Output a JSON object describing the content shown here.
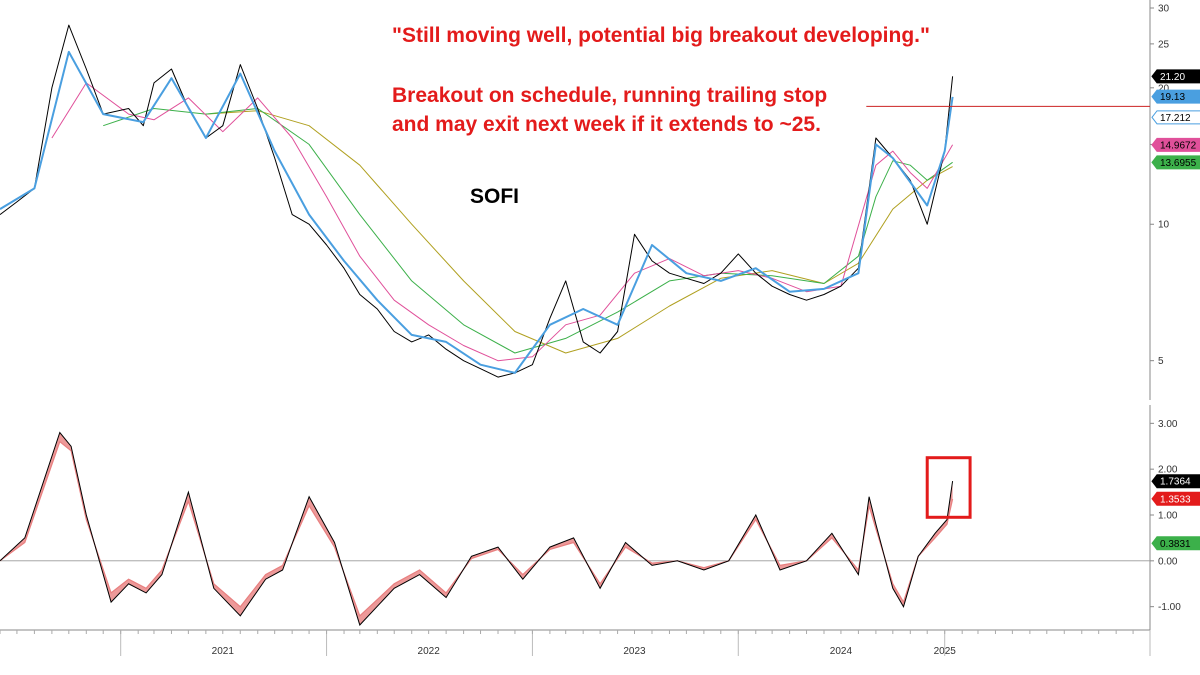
{
  "annotations": {
    "quote": "\"Still moving well, potential big breakout developing.\"",
    "note_line1": "Breakout on schedule, running trailing stop",
    "note_line2": "and may exit next week if it extends to ~25.",
    "ticker": "SOFI"
  },
  "colors": {
    "text_annotation": "#e31b1b",
    "price": "#000000",
    "ma_fast": "#4a9fe0",
    "ma_mid1": "#e0509a",
    "ma_mid2": "#3cb04a",
    "ma_slow": "#b0a020",
    "osc_fill": "#e88080",
    "resistance": "#cc2222"
  },
  "chart_data": [
    {
      "type": "line",
      "title": "",
      "ylabel": "",
      "y_scale": "log",
      "ylim": [
        4.2,
        30
      ],
      "y_ticks": [
        5,
        10,
        15,
        20,
        25,
        30
      ],
      "xlim": [
        "2020-06-01",
        "2025-12-31"
      ],
      "x_tick_labels": [
        "2021",
        "2022",
        "2023",
        "2024",
        "2025"
      ],
      "x_tick_dates": [
        "2021-07-01",
        "2022-07-01",
        "2023-07-01",
        "2024-07-01",
        "2025-01-01"
      ],
      "series": [
        {
          "role": "price",
          "color": "#000000",
          "x": [
            "2020-06-01",
            "2020-07-01",
            "2020-08-01",
            "2020-09-01",
            "2020-10-01",
            "2020-11-01",
            "2020-12-01",
            "2021-01-15",
            "2021-02-10",
            "2021-03-01",
            "2021-04-01",
            "2021-05-01",
            "2021-06-01",
            "2021-07-01",
            "2021-08-01",
            "2021-09-01",
            "2021-10-01",
            "2021-11-01",
            "2021-12-01",
            "2022-01-01",
            "2022-02-01",
            "2022-03-01",
            "2022-04-01",
            "2022-05-01",
            "2022-06-01",
            "2022-07-01",
            "2022-08-01",
            "2022-09-01",
            "2022-10-01",
            "2022-11-01",
            "2022-12-01",
            "2023-01-01",
            "2023-02-01",
            "2023-03-01",
            "2023-04-01",
            "2023-05-01",
            "2023-06-01",
            "2023-07-01",
            "2023-08-01",
            "2023-09-01",
            "2023-10-01",
            "2023-11-01",
            "2023-12-01",
            "2024-01-01",
            "2024-02-01",
            "2024-03-01",
            "2024-04-01",
            "2024-05-01",
            "2024-06-01",
            "2024-07-01",
            "2024-08-01",
            "2024-09-01",
            "2024-10-01",
            "2024-11-01",
            "2024-12-01",
            "2025-01-01",
            "2025-01-15"
          ],
          "y": [
            10.5,
            11.2,
            12.0,
            20.0,
            27.5,
            22.0,
            17.5,
            18.0,
            16.5,
            20.5,
            22.0,
            18.0,
            15.5,
            16.5,
            22.5,
            18.0,
            14.0,
            10.5,
            10.0,
            9.0,
            8.0,
            7.0,
            6.5,
            5.8,
            5.5,
            5.7,
            5.3,
            5.0,
            4.8,
            4.6,
            4.7,
            4.9,
            6.2,
            7.5,
            5.5,
            5.2,
            5.8,
            9.5,
            8.3,
            7.8,
            7.6,
            7.4,
            7.8,
            8.6,
            7.8,
            7.3,
            7.0,
            6.8,
            7.0,
            7.3,
            8.0,
            15.5,
            14.0,
            12.5,
            10.0,
            14.5,
            21.2
          ]
        },
        {
          "role": "ma_fast",
          "color": "#4a9fe0",
          "x": [
            "2020-06-01",
            "2020-08-01",
            "2020-10-01",
            "2020-12-01",
            "2021-02-10",
            "2021-04-01",
            "2021-06-01",
            "2021-08-01",
            "2021-10-01",
            "2021-12-01",
            "2022-02-01",
            "2022-04-01",
            "2022-06-01",
            "2022-08-01",
            "2022-10-01",
            "2022-12-01",
            "2023-02-01",
            "2023-04-01",
            "2023-06-01",
            "2023-08-01",
            "2023-10-01",
            "2023-12-01",
            "2024-02-01",
            "2024-04-01",
            "2024-06-01",
            "2024-08-01",
            "2024-09-01",
            "2024-10-01",
            "2024-12-01",
            "2025-01-01",
            "2025-01-15"
          ],
          "y": [
            10.8,
            12.0,
            24.0,
            17.5,
            16.8,
            21.0,
            15.5,
            21.5,
            14.5,
            10.5,
            8.3,
            6.8,
            5.7,
            5.5,
            4.9,
            4.7,
            6.0,
            6.5,
            6.0,
            9.0,
            7.8,
            7.5,
            8.0,
            7.1,
            7.2,
            7.8,
            15.0,
            14.0,
            11.0,
            14.5,
            19.1
          ]
        },
        {
          "role": "ma_mid1",
          "color": "#e0509a",
          "x": [
            "2020-09-01",
            "2020-11-01",
            "2021-01-15",
            "2021-03-01",
            "2021-05-01",
            "2021-07-01",
            "2021-09-01",
            "2021-11-01",
            "2022-01-01",
            "2022-03-01",
            "2022-05-01",
            "2022-07-01",
            "2022-09-01",
            "2022-11-01",
            "2023-01-01",
            "2023-03-01",
            "2023-05-01",
            "2023-07-01",
            "2023-09-01",
            "2023-11-01",
            "2024-01-01",
            "2024-03-01",
            "2024-05-01",
            "2024-07-01",
            "2024-09-01",
            "2024-10-01",
            "2024-11-01",
            "2024-12-01",
            "2025-01-15"
          ],
          "y": [
            15.5,
            20.5,
            17.5,
            17.0,
            19.0,
            16.0,
            19.0,
            15.5,
            11.5,
            8.5,
            6.8,
            6.0,
            5.4,
            5.0,
            5.1,
            6.0,
            6.3,
            7.8,
            8.4,
            7.7,
            7.9,
            7.6,
            7.1,
            7.3,
            13.5,
            14.5,
            13.0,
            12.0,
            14.97
          ]
        },
        {
          "role": "ma_mid2",
          "color": "#3cb04a",
          "x": [
            "2020-12-01",
            "2021-03-01",
            "2021-06-01",
            "2021-09-01",
            "2021-12-01",
            "2022-03-01",
            "2022-06-01",
            "2022-09-01",
            "2022-12-01",
            "2023-03-01",
            "2023-06-01",
            "2023-09-01",
            "2023-12-01",
            "2024-03-01",
            "2024-06-01",
            "2024-08-01",
            "2024-09-01",
            "2024-10-01",
            "2024-11-01",
            "2024-12-01",
            "2025-01-15"
          ],
          "y": [
            16.5,
            18.0,
            17.5,
            18.0,
            15.0,
            10.5,
            7.5,
            6.0,
            5.2,
            5.6,
            6.4,
            7.5,
            7.8,
            7.7,
            7.4,
            8.5,
            11.5,
            13.8,
            13.5,
            12.5,
            13.7
          ]
        },
        {
          "role": "ma_slow",
          "color": "#b0a020",
          "x": [
            "2021-06-01",
            "2021-09-01",
            "2021-12-01",
            "2022-03-01",
            "2022-06-01",
            "2022-09-01",
            "2022-12-01",
            "2023-03-01",
            "2023-06-01",
            "2023-09-01",
            "2023-12-01",
            "2024-03-01",
            "2024-06-01",
            "2024-08-01",
            "2024-10-01",
            "2024-12-01",
            "2025-01-15"
          ],
          "y": [
            17.5,
            17.8,
            16.5,
            13.5,
            10.0,
            7.5,
            5.8,
            5.2,
            5.6,
            6.6,
            7.6,
            7.9,
            7.4,
            8.2,
            10.8,
            12.5,
            13.4
          ]
        }
      ],
      "resistance_level": 18.2,
      "resistance_from": "2024-08-15",
      "last_value_labels": [
        {
          "text": "21.20",
          "value": 21.2,
          "bg": "#000000",
          "fg": "#ffffff"
        },
        {
          "text": "19.13",
          "value": 19.13,
          "bg": "#4a9fe0",
          "fg": "#000000"
        },
        {
          "text": "17.212",
          "value": 17.212,
          "bg": "#ffffff",
          "fg": "#000000",
          "border": "#4a9fe0"
        },
        {
          "text": "14.9672",
          "value": 14.9672,
          "bg": "#e0509a",
          "fg": "#000000"
        },
        {
          "text": "13.6955",
          "value": 13.6955,
          "bg": "#3cb04a",
          "fg": "#000000"
        }
      ]
    },
    {
      "type": "area",
      "title": "",
      "ylim": [
        -1.4,
        3.4
      ],
      "y_ticks": [
        -1.0,
        0.0,
        1.0,
        2.0,
        3.0
      ],
      "y_tick_labels": [
        "-1.00",
        "0.00",
        "1.00",
        "2.00",
        "3.00"
      ],
      "zero_line": true,
      "series": [
        {
          "role": "oscillator_fast",
          "color": "#000000",
          "x": [
            "2020-06-01",
            "2020-07-15",
            "2020-09-15",
            "2020-10-05",
            "2020-11-01",
            "2020-12-15",
            "2021-01-15",
            "2021-02-15",
            "2021-03-15",
            "2021-05-01",
            "2021-06-15",
            "2021-08-01",
            "2021-09-15",
            "2021-10-15",
            "2021-12-01",
            "2022-01-15",
            "2022-03-01",
            "2022-05-01",
            "2022-06-15",
            "2022-08-01",
            "2022-09-15",
            "2022-11-01",
            "2022-12-15",
            "2023-02-01",
            "2023-03-15",
            "2023-05-01",
            "2023-06-15",
            "2023-08-01",
            "2023-09-15",
            "2023-11-01",
            "2023-12-15",
            "2024-02-01",
            "2024-03-15",
            "2024-05-01",
            "2024-06-15",
            "2024-08-01",
            "2024-08-20",
            "2024-09-01",
            "2024-10-01",
            "2024-10-20",
            "2024-11-15",
            "2024-12-15",
            "2025-01-05",
            "2025-01-15"
          ],
          "y": [
            0.0,
            0.5,
            2.8,
            2.5,
            1.0,
            -0.9,
            -0.5,
            -0.7,
            -0.3,
            1.5,
            -0.6,
            -1.2,
            -0.4,
            -0.2,
            1.4,
            0.4,
            -1.4,
            -0.6,
            -0.3,
            -0.8,
            0.1,
            0.3,
            -0.4,
            0.3,
            0.5,
            -0.6,
            0.4,
            -0.1,
            0.0,
            -0.2,
            0.0,
            1.0,
            -0.2,
            0.0,
            0.6,
            -0.3,
            1.4,
            0.8,
            -0.6,
            -1.0,
            0.1,
            0.6,
            0.9,
            1.74
          ]
        },
        {
          "role": "oscillator_slow",
          "color": "#e88080",
          "x": [
            "2020-06-01",
            "2020-07-15",
            "2020-09-15",
            "2020-10-05",
            "2020-11-01",
            "2020-12-15",
            "2021-01-15",
            "2021-02-15",
            "2021-03-15",
            "2021-05-01",
            "2021-06-15",
            "2021-08-01",
            "2021-09-15",
            "2021-10-15",
            "2021-12-01",
            "2022-01-15",
            "2022-03-01",
            "2022-05-01",
            "2022-06-15",
            "2022-08-01",
            "2022-09-15",
            "2022-11-01",
            "2022-12-15",
            "2023-02-01",
            "2023-03-15",
            "2023-05-01",
            "2023-06-15",
            "2023-08-01",
            "2023-09-15",
            "2023-11-01",
            "2023-12-15",
            "2024-02-01",
            "2024-03-15",
            "2024-05-01",
            "2024-06-15",
            "2024-08-01",
            "2024-08-20",
            "2024-09-01",
            "2024-10-01",
            "2024-10-20",
            "2024-11-15",
            "2024-12-15",
            "2025-01-05",
            "2025-01-15"
          ],
          "y": [
            0.0,
            0.4,
            2.6,
            2.4,
            0.9,
            -0.7,
            -0.4,
            -0.6,
            -0.2,
            1.3,
            -0.5,
            -1.0,
            -0.3,
            -0.1,
            1.2,
            0.3,
            -1.2,
            -0.5,
            -0.2,
            -0.7,
            0.05,
            0.25,
            -0.3,
            0.25,
            0.4,
            -0.5,
            0.3,
            -0.05,
            0.0,
            -0.15,
            0.0,
            0.9,
            -0.1,
            0.0,
            0.5,
            -0.2,
            1.2,
            0.7,
            -0.5,
            -0.9,
            0.1,
            0.5,
            0.8,
            1.35
          ]
        }
      ],
      "last_value_labels": [
        {
          "text": "1.7364",
          "value": 1.7364,
          "bg": "#000000",
          "fg": "#ffffff"
        },
        {
          "text": "1.3533",
          "value": 1.3533,
          "bg": "#e31b1b",
          "fg": "#ffffff"
        },
        {
          "text": "0.3831",
          "value": 0.3831,
          "bg": "#3cb04a",
          "fg": "#000000"
        }
      ],
      "highlight_box": {
        "from": "2024-12-01",
        "to": "2025-02-15",
        "ymin": 0.95,
        "ymax": 2.25,
        "color": "#e31b1b"
      }
    }
  ]
}
